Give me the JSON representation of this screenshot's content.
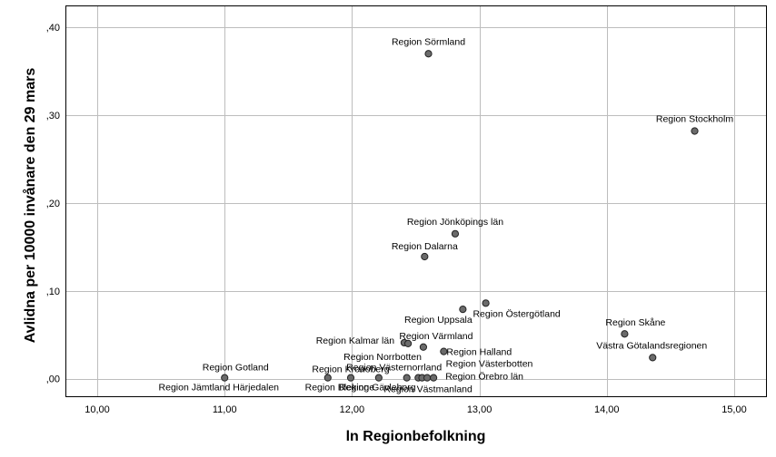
{
  "chart_data": {
    "type": "scatter",
    "title": "",
    "xlabel": "ln Regionbefolkning",
    "ylabel": "Avlidna per 10000 invånare den 29 mars",
    "xlim": [
      9.75,
      15.25
    ],
    "ylim": [
      -0.02,
      0.425
    ],
    "x_ticks": [
      10,
      11,
      12,
      13,
      14,
      15
    ],
    "x_tick_labels": [
      "10,00",
      "11,00",
      "12,00",
      "13,00",
      "14,00",
      "15,00"
    ],
    "y_ticks": [
      0,
      0.1,
      0.2,
      0.3,
      0.4
    ],
    "y_tick_labels": [
      ",00",
      ",10",
      ",20",
      ",30",
      ",40"
    ],
    "grid": true,
    "marker_color": "#6b6b6b",
    "points": [
      {
        "label": "Region Sörmland",
        "x": 12.6,
        "y": 0.37
      },
      {
        "label": "Region Stockholm",
        "x": 14.69,
        "y": 0.282
      },
      {
        "label": "Region Jönköpings län",
        "x": 12.81,
        "y": 0.165
      },
      {
        "label": "Region Dalarna",
        "x": 12.57,
        "y": 0.139
      },
      {
        "label": "Region Östergötland",
        "x": 13.05,
        "y": 0.086
      },
      {
        "label": "Region Uppsala",
        "x": 12.87,
        "y": 0.079
      },
      {
        "label": "Region Skåne",
        "x": 14.14,
        "y": 0.051
      },
      {
        "label": "Region Värmland",
        "x": 12.56,
        "y": 0.036
      },
      {
        "label": "Region Kalmar län",
        "x": 12.41,
        "y": 0.041
      },
      {
        "label": "Region Norrbotten",
        "x": 12.44,
        "y": 0.04
      },
      {
        "label": "Region Halland",
        "x": 12.72,
        "y": 0.031
      },
      {
        "label": "Västra Götalandsregionen",
        "x": 14.36,
        "y": 0.024
      },
      {
        "label": "Region Gotland",
        "x": 11.0,
        "y": 0.001
      },
      {
        "label": "Region Jämtland Härjedalen",
        "x": 11.81,
        "y": 0.001
      },
      {
        "label": "Region Kronoberg",
        "x": 11.99,
        "y": 0.001
      },
      {
        "label": "Region Blekinge",
        "x": 12.21,
        "y": 0.001
      },
      {
        "label": "Region Västernorrland",
        "x": 12.43,
        "y": 0.001
      },
      {
        "label": "Region Gävleborg",
        "x": 12.52,
        "y": 0.001
      },
      {
        "label": "Region Västerbotten",
        "x": 12.55,
        "y": 0.001
      },
      {
        "label": "Region Örebro län",
        "x": 12.59,
        "y": 0.001
      },
      {
        "label": "Region Västmanland",
        "x": 12.64,
        "y": 0.001
      }
    ]
  }
}
